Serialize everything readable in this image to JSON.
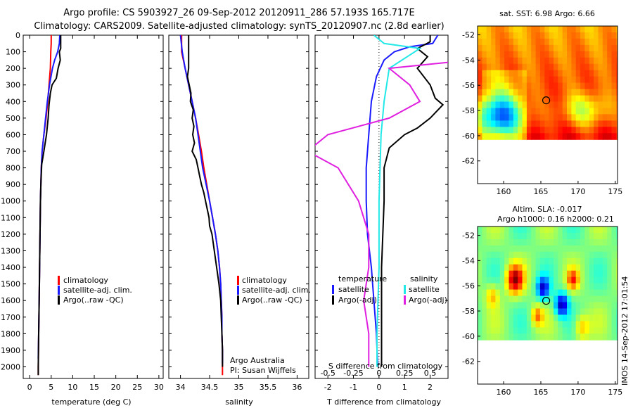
{
  "titles": {
    "line1": "Argo profile: CS 5903927_26 09-Sep-2012 20120911_286 57.193S 165.717E",
    "line2": "Climatology: CARS2009. Satellite-adjusted climatology: synTS_20120907.nc (2.8d earlier)"
  },
  "colors": {
    "climatology": "#ff0000",
    "satellite": "#1a1aff",
    "argo": "#000000",
    "sal_satellite": "#22e8e8",
    "sal_argo": "#e020e0"
  },
  "chart_data": [
    {
      "id": "temperature",
      "type": "line",
      "xlabel": "temperature (deg C)",
      "ylabel": "",
      "xlim": [
        -1.5,
        31
      ],
      "ylim": [
        2070,
        0
      ],
      "xticks": [
        0,
        5,
        10,
        15,
        20,
        25,
        30
      ],
      "xtick_labels": [
        "0",
        "5",
        "10",
        "15",
        "20",
        "25",
        "30"
      ],
      "yticks": [
        0,
        100,
        200,
        300,
        400,
        500,
        600,
        700,
        800,
        900,
        1000,
        1100,
        1200,
        1300,
        1400,
        1500,
        1600,
        1700,
        1800,
        1900,
        2000
      ],
      "ytick_labels": [
        "0",
        "100",
        "200",
        "300",
        "400",
        "500",
        "600",
        "700",
        "800",
        "900",
        "1000",
        "1100",
        "1200",
        "1300",
        "1400",
        "1500",
        "1600",
        "1700",
        "1800",
        "1900",
        "2000"
      ],
      "legend": {
        "position": "lower-left",
        "entries": [
          "climatology",
          "satellite-adj. clim.",
          "Argo(..raw -QC)"
        ]
      },
      "series": [
        {
          "name": "climatology",
          "color_key": "climatology",
          "points": [
            [
              5.0,
              0
            ],
            [
              5.0,
              50
            ],
            [
              4.9,
              100
            ],
            [
              4.8,
              200
            ],
            [
              4.5,
              300
            ],
            [
              4.2,
              400
            ],
            [
              3.8,
              500
            ],
            [
              3.3,
              600
            ],
            [
              2.9,
              700
            ],
            [
              2.7,
              800
            ],
            [
              2.6,
              900
            ],
            [
              2.5,
              1000
            ],
            [
              2.4,
              1200
            ],
            [
              2.3,
              1400
            ],
            [
              2.2,
              1600
            ],
            [
              2.1,
              1800
            ],
            [
              2.0,
              2000
            ],
            [
              2.0,
              2050
            ]
          ]
        },
        {
          "name": "satellite-adj. clim.",
          "color_key": "satellite",
          "points": [
            [
              7.0,
              0
            ],
            [
              6.9,
              50
            ],
            [
              6.5,
              100
            ],
            [
              5.8,
              150
            ],
            [
              5.3,
              200
            ],
            [
              4.6,
              300
            ],
            [
              4.1,
              400
            ],
            [
              3.7,
              500
            ],
            [
              3.3,
              600
            ],
            [
              2.9,
              700
            ],
            [
              2.7,
              800
            ],
            [
              2.6,
              900
            ],
            [
              2.5,
              1000
            ],
            [
              2.4,
              1200
            ],
            [
              2.3,
              1400
            ],
            [
              2.2,
              1600
            ],
            [
              2.1,
              1800
            ],
            [
              2.0,
              1950
            ]
          ]
        },
        {
          "name": "Argo(..raw -QC)",
          "color_key": "argo",
          "points": [
            [
              7.2,
              0
            ],
            [
              7.2,
              80
            ],
            [
              6.9,
              100
            ],
            [
              7.1,
              150
            ],
            [
              6.6,
              200
            ],
            [
              6.2,
              260
            ],
            [
              5.2,
              300
            ],
            [
              4.8,
              350
            ],
            [
              4.5,
              420
            ],
            [
              4.3,
              500
            ],
            [
              3.9,
              600
            ],
            [
              3.3,
              700
            ],
            [
              2.8,
              780
            ],
            [
              2.6,
              900
            ],
            [
              2.5,
              1000
            ],
            [
              2.4,
              1200
            ],
            [
              2.3,
              1400
            ],
            [
              2.2,
              1600
            ],
            [
              2.1,
              1800
            ],
            [
              2.0,
              2000
            ],
            [
              2.0,
              2050
            ]
          ]
        }
      ]
    },
    {
      "id": "salinity",
      "type": "line",
      "xlabel": "salinity",
      "ylabel": "",
      "xlim": [
        33.8,
        36.2
      ],
      "ylim": [
        2070,
        0
      ],
      "xticks": [
        34,
        34.5,
        35,
        35.5,
        36
      ],
      "xtick_labels": [
        "34",
        "34.5",
        "35",
        "35.5",
        "36"
      ],
      "legend": {
        "position": "lower-right",
        "entries": [
          "climatology",
          "satellite-adj. clim.",
          "Argo(..raw -QC)"
        ]
      },
      "annotation": [
        "Argo Australia",
        "PI: Susan Wijffels"
      ],
      "series": [
        {
          "name": "climatology",
          "color_key": "climatology",
          "points": [
            [
              34.02,
              0
            ],
            [
              34.02,
              100
            ],
            [
              34.08,
              200
            ],
            [
              34.14,
              300
            ],
            [
              34.2,
              400
            ],
            [
              34.26,
              500
            ],
            [
              34.31,
              600
            ],
            [
              34.36,
              700
            ],
            [
              34.4,
              800
            ],
            [
              34.45,
              900
            ],
            [
              34.5,
              1000
            ],
            [
              34.55,
              1100
            ],
            [
              34.6,
              1200
            ],
            [
              34.64,
              1300
            ],
            [
              34.67,
              1400
            ],
            [
              34.69,
              1500
            ],
            [
              34.7,
              1600
            ],
            [
              34.71,
              1700
            ],
            [
              34.71,
              1800
            ],
            [
              34.72,
              1900
            ],
            [
              34.72,
              2050
            ]
          ]
        },
        {
          "name": "satellite-adj. clim.",
          "color_key": "satellite",
          "points": [
            [
              34.0,
              0
            ],
            [
              34.03,
              100
            ],
            [
              34.08,
              200
            ],
            [
              34.14,
              300
            ],
            [
              34.2,
              400
            ],
            [
              34.26,
              500
            ],
            [
              34.3,
              600
            ],
            [
              34.34,
              700
            ],
            [
              34.38,
              800
            ],
            [
              34.44,
              900
            ],
            [
              34.5,
              1000
            ],
            [
              34.55,
              1100
            ],
            [
              34.6,
              1200
            ],
            [
              34.64,
              1300
            ],
            [
              34.67,
              1400
            ],
            [
              34.69,
              1500
            ],
            [
              34.7,
              1600
            ],
            [
              34.71,
              1700
            ],
            [
              34.71,
              1800
            ],
            [
              34.72,
              1900
            ],
            [
              34.72,
              1980
            ]
          ]
        },
        {
          "name": "Argo(..raw -QC)",
          "color_key": "argo",
          "points": [
            [
              34.14,
              0
            ],
            [
              34.14,
              100
            ],
            [
              34.14,
              200
            ],
            [
              34.12,
              250
            ],
            [
              34.15,
              300
            ],
            [
              34.18,
              350
            ],
            [
              34.17,
              400
            ],
            [
              34.22,
              450
            ],
            [
              34.2,
              500
            ],
            [
              34.23,
              550
            ],
            [
              34.21,
              600
            ],
            [
              34.24,
              650
            ],
            [
              34.2,
              700
            ],
            [
              34.27,
              750
            ],
            [
              34.3,
              800
            ],
            [
              34.33,
              850
            ],
            [
              34.36,
              900
            ],
            [
              34.4,
              950
            ],
            [
              34.43,
              1000
            ],
            [
              34.46,
              1050
            ],
            [
              34.49,
              1100
            ],
            [
              34.5,
              1150
            ],
            [
              34.54,
              1200
            ],
            [
              34.58,
              1300
            ],
            [
              34.62,
              1400
            ],
            [
              34.66,
              1500
            ],
            [
              34.69,
              1600
            ],
            [
              34.7,
              1700
            ],
            [
              34.71,
              1800
            ],
            [
              34.72,
              1900
            ],
            [
              34.72,
              2000
            ]
          ]
        }
      ]
    },
    {
      "id": "difference",
      "type": "line",
      "xlabel": "T difference from climatology",
      "top_label": "S difference from climatology",
      "xlim": [
        -2.5,
        2.7
      ],
      "ylim": [
        2070,
        0
      ],
      "xticks": [
        -2,
        -1,
        0,
        1,
        2
      ],
      "xtick_labels": [
        "-2",
        "-1",
        "0",
        "1",
        "2"
      ],
      "top_ticks": [
        -0.5,
        -0.25,
        0,
        0.25,
        0.5
      ],
      "top_tick_labels": [
        "-0.5",
        "-0.25",
        "0",
        "0.25",
        "0.5"
      ],
      "legend": {
        "temperature_heading": "temperature",
        "salinity_heading": "salinity",
        "temperature_entries": [
          "satellite",
          "Argo(-adj)"
        ],
        "salinity_entries": [
          "satellite",
          "Argo(-adj)"
        ]
      },
      "series": [
        {
          "name": "T satellite",
          "color_key": "satellite",
          "points": [
            [
              2.3,
              0
            ],
            [
              2.1,
              50
            ],
            [
              1.2,
              70
            ],
            [
              0.6,
              100
            ],
            [
              0.2,
              150
            ],
            [
              -0.1,
              250
            ],
            [
              -0.3,
              400
            ],
            [
              -0.4,
              600
            ],
            [
              -0.5,
              800
            ],
            [
              -0.5,
              1000
            ],
            [
              -0.45,
              1200
            ],
            [
              -0.3,
              1400
            ],
            [
              -0.2,
              1600
            ],
            [
              -0.1,
              1800
            ],
            [
              -0.05,
              2000
            ]
          ]
        },
        {
          "name": "T Argo(-adj)",
          "color_key": "argo",
          "points": [
            [
              2.0,
              0
            ],
            [
              2.0,
              40
            ],
            [
              1.5,
              80
            ],
            [
              1.9,
              130
            ],
            [
              1.5,
              200
            ],
            [
              2.0,
              300
            ],
            [
              2.2,
              380
            ],
            [
              2.5,
              420
            ],
            [
              2.0,
              500
            ],
            [
              1.5,
              560
            ],
            [
              1.0,
              600
            ],
            [
              0.4,
              680
            ],
            [
              0.2,
              800
            ],
            [
              0.2,
              1000
            ],
            [
              0.15,
              1200
            ],
            [
              0.1,
              1400
            ],
            [
              0.1,
              1600
            ],
            [
              0.1,
              1800
            ],
            [
              0.1,
              2000
            ]
          ]
        },
        {
          "name": "S satellite",
          "color_key": "sal_satellite",
          "points": [
            [
              -0.05,
              0
            ],
            [
              0.05,
              50
            ],
            [
              0.4,
              80
            ],
            [
              0.3,
              120
            ],
            [
              0.1,
              200
            ],
            [
              0.05,
              400
            ],
            [
              0.02,
              600
            ],
            [
              0.0,
              1000
            ],
            [
              0.0,
              1400
            ],
            [
              -0.02,
              1800
            ],
            [
              -0.02,
              2000
            ]
          ]
        },
        {
          "name": "S Argo(-adj)",
          "color_key": "sal_argo",
          "points": [
            [
              1.2,
              20
            ],
            [
              1.2,
              80
            ],
            [
              0.9,
              150
            ],
            [
              0.1,
              200
            ],
            [
              0.3,
              300
            ],
            [
              0.4,
              400
            ],
            [
              0.1,
              500
            ],
            [
              -0.5,
              600
            ],
            [
              -0.7,
              700
            ],
            [
              -0.4,
              800
            ],
            [
              -0.2,
              1000
            ],
            [
              -0.1,
              1200
            ],
            [
              -0.1,
              1400
            ],
            [
              -0.15,
              1600
            ],
            [
              -0.1,
              1800
            ],
            [
              -0.1,
              2000
            ]
          ]
        }
      ]
    },
    {
      "id": "sst_map",
      "type": "heatmap",
      "title": "sat. SST: 6.98 Argo: 6.66",
      "xlim": [
        156.5,
        175.3
      ],
      "ylim": [
        -63.8,
        -51.3
      ],
      "xticks": [
        160,
        165,
        170,
        175
      ],
      "xtick_labels": [
        "160",
        "165",
        "170",
        "175"
      ],
      "yticks": [
        -52,
        -54,
        -56,
        -58,
        -60,
        -62
      ],
      "ytick_labels": [
        "-52",
        "-54",
        "-56",
        "-58",
        "-60",
        "-62"
      ],
      "data_extent_lat": [
        -60,
        -51.3
      ],
      "argo_position": [
        165.717,
        -57.193
      ]
    },
    {
      "id": "sla_map",
      "type": "heatmap",
      "title_lines": [
        "Altim. SLA: -0.017",
        "Argo h1000: 0.16 h2000: 0.21"
      ],
      "xlim": [
        156.5,
        175.3
      ],
      "ylim": [
        -63.8,
        -51.3
      ],
      "xticks": [
        160,
        165,
        170,
        175
      ],
      "xtick_labels": [
        "160",
        "165",
        "170",
        "175"
      ],
      "yticks": [
        -52,
        -54,
        -56,
        -58,
        -60,
        -62
      ],
      "ytick_labels": [
        "-52",
        "-54",
        "-56",
        "-58",
        "-60",
        "-62"
      ],
      "data_extent_lat": [
        -60,
        -51.3
      ],
      "argo_position": [
        165.717,
        -57.193
      ]
    }
  ],
  "side_stamp": "IMOS 14-Sep-2012 17:01:54"
}
